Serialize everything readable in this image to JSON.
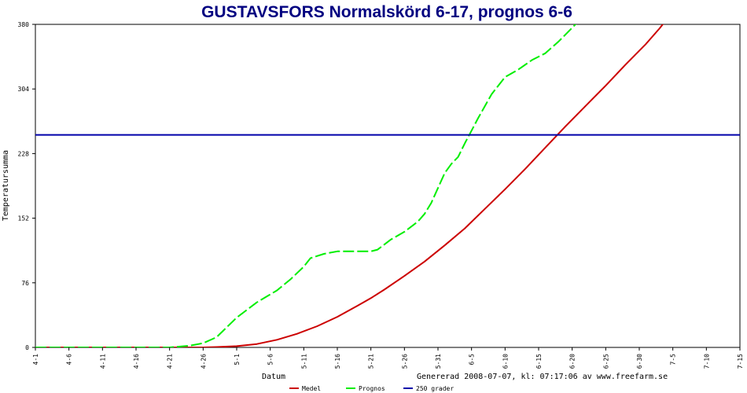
{
  "chart_data": {
    "type": "line",
    "title": "GUSTAVSFORS Normalskörd 6-17, prognos 6-6",
    "xlabel": "Datum",
    "ylabel": "Temperatursumma",
    "footer": "Genererad 2008-07-07, kl: 07:17:06 av www.freefarm.se",
    "ylim": [
      0,
      380
    ],
    "yticks": [
      "0",
      "76",
      "152",
      "228",
      "304",
      "380"
    ],
    "xticks": [
      "4-1",
      "4-6",
      "4-11",
      "4-16",
      "4-21",
      "4-26",
      "5-1",
      "5-6",
      "5-11",
      "5-16",
      "5-21",
      "5-26",
      "5-31",
      "6-5",
      "6-10",
      "6-15",
      "6-20",
      "6-25",
      "6-30",
      "7-5",
      "7-10",
      "7-15"
    ],
    "x_days_range": [
      0,
      105
    ],
    "grid": false,
    "legend_position": "bottom",
    "series": [
      {
        "name": "Medel",
        "color": "#cc0000",
        "style": "solid",
        "points": [
          [
            0,
            0
          ],
          [
            25,
            0
          ],
          [
            27,
            0.5
          ],
          [
            30,
            1.5
          ],
          [
            33,
            4
          ],
          [
            36,
            9
          ],
          [
            39,
            16
          ],
          [
            42,
            25
          ],
          [
            45,
            36
          ],
          [
            48,
            49
          ],
          [
            50,
            58
          ],
          [
            52,
            68
          ],
          [
            55,
            84
          ],
          [
            58,
            101
          ],
          [
            61,
            120
          ],
          [
            64,
            140
          ],
          [
            67,
            163
          ],
          [
            70,
            186
          ],
          [
            73,
            210
          ],
          [
            76,
            235
          ],
          [
            79,
            260
          ],
          [
            82,
            284
          ],
          [
            85,
            308
          ],
          [
            88,
            333
          ],
          [
            91,
            357
          ],
          [
            93,
            375
          ],
          [
            95,
            395
          ]
        ]
      },
      {
        "name": "Prognos",
        "color": "#00ee00",
        "style": "dashed",
        "points": [
          [
            0,
            0
          ],
          [
            20,
            0
          ],
          [
            23,
            2
          ],
          [
            25,
            5
          ],
          [
            27,
            12
          ],
          [
            30,
            35
          ],
          [
            33,
            53
          ],
          [
            36,
            67
          ],
          [
            38,
            80
          ],
          [
            40,
            95
          ],
          [
            41,
            105
          ],
          [
            43,
            110
          ],
          [
            45,
            113
          ],
          [
            48,
            113
          ],
          [
            50,
            113
          ],
          [
            51,
            115
          ],
          [
            53,
            127
          ],
          [
            55,
            136
          ],
          [
            57,
            148
          ],
          [
            58,
            157
          ],
          [
            59,
            170
          ],
          [
            61,
            205
          ],
          [
            62,
            216
          ],
          [
            63,
            224
          ],
          [
            64,
            240
          ],
          [
            65,
            255
          ],
          [
            66,
            270
          ],
          [
            68,
            298
          ],
          [
            70,
            318
          ],
          [
            72,
            327
          ],
          [
            74,
            338
          ],
          [
            76,
            346
          ],
          [
            78,
            360
          ],
          [
            80,
            376
          ],
          [
            82,
            392
          ]
        ]
      },
      {
        "name": "250 grader",
        "color": "#0000aa",
        "style": "solid",
        "points": [
          [
            0,
            250
          ],
          [
            105,
            250
          ]
        ]
      }
    ]
  }
}
